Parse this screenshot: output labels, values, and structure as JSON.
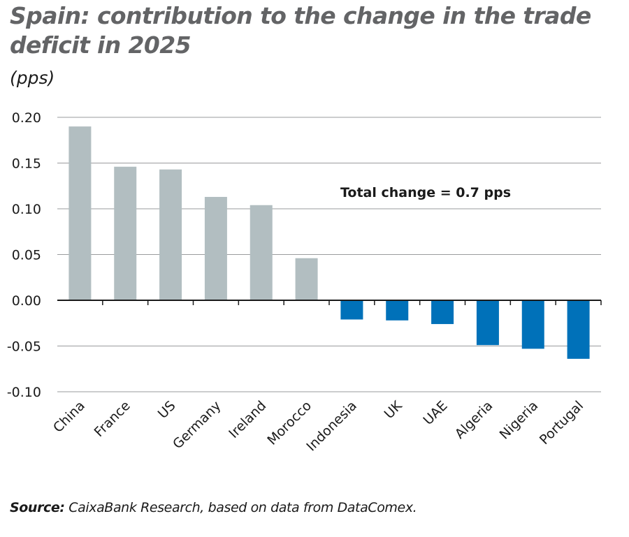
{
  "chart_data": {
    "type": "bar",
    "title": "Spain: contribution to the change in the trade deficit in 2025",
    "subtitle": "(pps)",
    "categories": [
      "China",
      "France",
      "US",
      "Germany",
      "Ireland",
      "Morocco",
      "Indonesia",
      "UK",
      "UAE",
      "Algeria",
      "Nigeria",
      "Portugal"
    ],
    "values": [
      0.19,
      0.146,
      0.143,
      0.113,
      0.104,
      0.046,
      -0.021,
      -0.022,
      -0.026,
      -0.049,
      -0.053,
      -0.064
    ],
    "ylim": [
      -0.1,
      0.2
    ],
    "yticks": [
      0.2,
      0.15,
      0.1,
      0.05,
      0.0,
      -0.05,
      -0.1
    ],
    "ytick_labels": [
      "0.20",
      "0.15",
      "0.10",
      "0.05",
      "0.00",
      "-0.05",
      "-0.10"
    ],
    "xlabel": "",
    "ylabel": "",
    "grid": true,
    "annotation": "Total change = 0.7 pps",
    "colors": {
      "positive": "#b2bec1",
      "negative": "#0071b9",
      "grid": "#9a9b9d",
      "axis": "#1a1a1a",
      "title": "#636466"
    }
  },
  "source": {
    "label": "Source:",
    "text": " CaixaBank Research, based on data from DataComex."
  }
}
